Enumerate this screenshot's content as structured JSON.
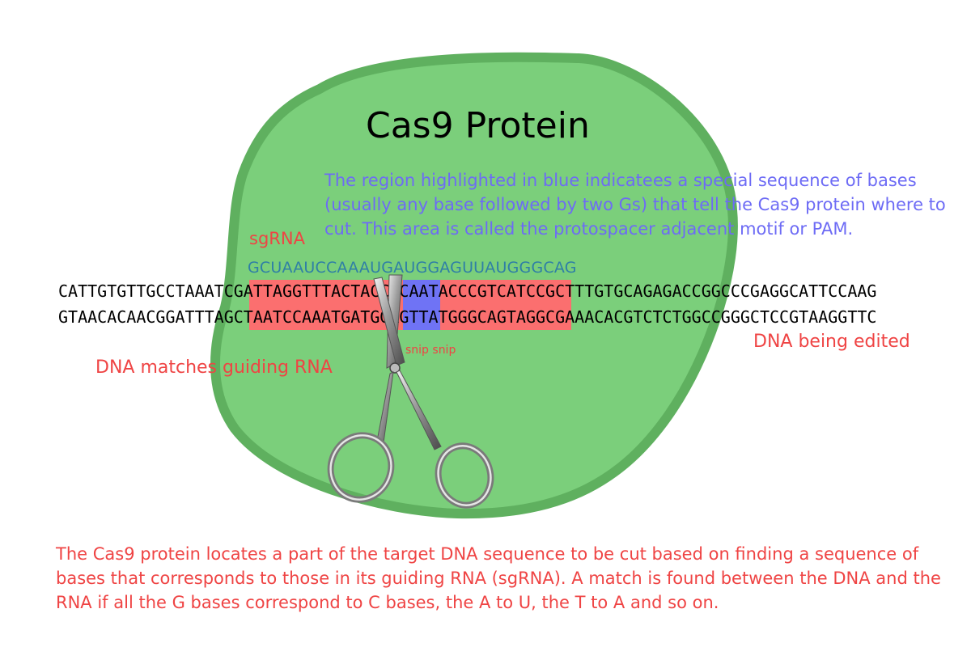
{
  "diagram": {
    "title": "Cas9 Protein",
    "pam_note": "The region highlighted in blue indicatees a special sequence of bases (usually any base followed by two Gs) that tell the Cas9 protein where to cut. This area is called the protospacer adjacent motif or PAM.",
    "sgrna_label": "sgRNA",
    "sgrna_sequence": "GCUAAUCCAAAUGAUGGAGUUAUGGGCAG",
    "dna_top_strand": "CATTGTGTTGCCTAAATCGATTAGGTTTACTACCTCAATACCCGTCATCCGCTTTGTGCAGAGACCGGCCCGAGGCATTCCAAG",
    "dna_bottom_strand": "GTAACACAACGGATTTAGCTAATCCAAATGATGGAGTTATGGGCAGTAGGCGAAACACGTCTCTGGCCGGGCTCCGTAAGGTTC",
    "dna_edited_label": "DNA being edited",
    "dna_match_label": "DNA matches guiding RNA",
    "snip_label": "snip snip",
    "explanation": "The Cas9 protein locates a part of the target DNA sequence to be cut based on finding a sequence of bases that corresponds to those in its guiding RNA (sgRNA). A match is found between the DNA and the RNA if all the G bases correspond to C bases, the A to U, the T to A and so on.",
    "colors": {
      "protein_fill": "#7bcf7b",
      "protein_outline": "#5fb05f",
      "match_highlight": "#fb6f6f",
      "pam_highlight": "#6f73f5",
      "note_text": "#6d6bf5",
      "label_text": "#ef4444",
      "rna_text": "#2f7fa6"
    },
    "icons": [
      "scissors-icon"
    ]
  }
}
